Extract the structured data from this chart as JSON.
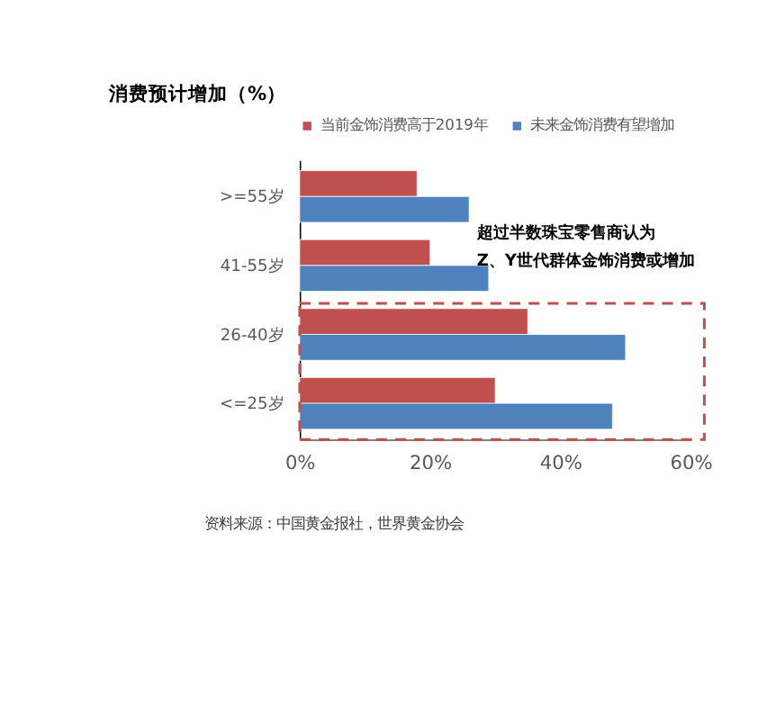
{
  "chart_data": {
    "type": "bar",
    "orientation": "horizontal",
    "title": "消费预计增加（%）",
    "categories": [
      ">=55岁",
      "41-55岁",
      "26-40岁",
      "<=25岁"
    ],
    "series": [
      {
        "name": "当前金饰消费高于2019年",
        "color": "#c0504d",
        "values": [
          18,
          20,
          35,
          30
        ]
      },
      {
        "name": "未来金饰消费有望增加",
        "color": "#4f81bd",
        "values": [
          26,
          29,
          50,
          48
        ]
      }
    ],
    "xlim": [
      0,
      60
    ],
    "xticks": [
      {
        "value": 0,
        "label": "0%"
      },
      {
        "value": 20,
        "label": "20%"
      },
      {
        "value": 40,
        "label": "40%"
      },
      {
        "value": 60,
        "label": "60%"
      }
    ],
    "grid": false,
    "legend": "top",
    "annotations": [
      "超过半数珠宝零售商认为",
      "Z、Y世代群体金饰消费或增加",
      "资料来源：中国黄金报社，世界黄金协会"
    ]
  }
}
